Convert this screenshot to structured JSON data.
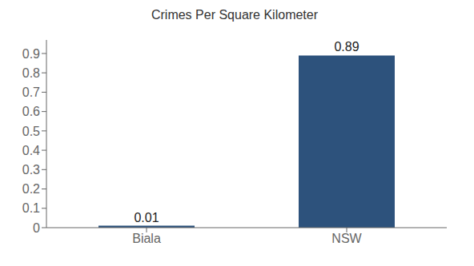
{
  "chart_data": {
    "type": "bar",
    "title": "Crimes Per Square Kilometer",
    "categories": [
      "Biala",
      "NSW"
    ],
    "values": [
      0.01,
      0.89
    ],
    "color": "#2d527c",
    "ylim": [
      0,
      0.97
    ],
    "yticks": [
      0,
      0.1,
      0.2,
      0.3,
      0.4,
      0.5,
      0.6,
      0.7,
      0.8,
      0.9
    ],
    "data_labels": true,
    "grid": false
  }
}
